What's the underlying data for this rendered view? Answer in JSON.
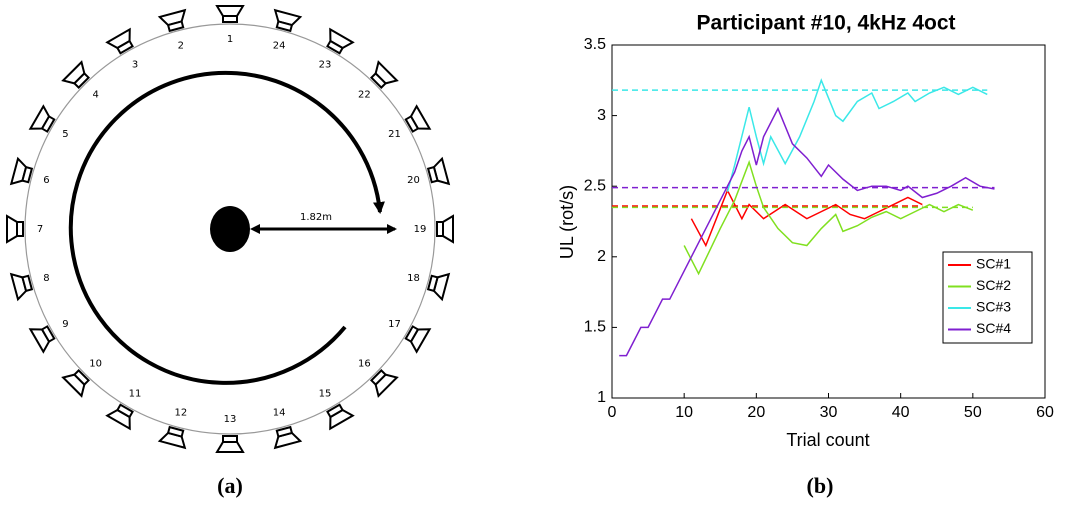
{
  "diagram": {
    "speakers": [
      "1",
      "2",
      "3",
      "4",
      "5",
      "6",
      "7",
      "8",
      "9",
      "10",
      "11",
      "12",
      "13",
      "14",
      "15",
      "16",
      "17",
      "18",
      "19",
      "20",
      "21",
      "22",
      "23",
      "24"
    ],
    "distance": "1.82m",
    "caption": "(a)"
  },
  "chart_data": {
    "type": "line",
    "title": "Participant #10, 4kHz 4oct",
    "caption": "(b)",
    "xlabel": "Trial count",
    "ylabel": "UL (rot/s)",
    "xlim": [
      0,
      60
    ],
    "xticks": [
      0,
      10,
      20,
      30,
      40,
      50,
      60
    ],
    "ylim": [
      1,
      3.5
    ],
    "yticks": [
      1,
      1.5,
      2,
      2.5,
      3,
      3.5
    ],
    "legend": "right",
    "series": [
      {
        "name": "SC#1",
        "color": "#ff0000",
        "threshold": 2.36,
        "x": [
          11,
          13,
          16,
          18,
          19,
          21,
          24,
          27,
          29,
          31,
          33,
          35,
          37,
          39,
          41,
          43
        ],
        "values": [
          2.27,
          2.08,
          2.47,
          2.27,
          2.37,
          2.27,
          2.37,
          2.27,
          2.32,
          2.37,
          2.3,
          2.27,
          2.32,
          2.37,
          2.42,
          2.37
        ]
      },
      {
        "name": "SC#2",
        "color": "#80e020",
        "threshold": 2.35,
        "x": [
          10,
          12,
          15,
          17,
          19,
          20,
          21,
          23,
          25,
          27,
          29,
          31,
          32,
          34,
          36,
          38,
          40,
          42,
          44,
          46,
          48,
          50
        ],
        "values": [
          2.08,
          1.88,
          2.2,
          2.4,
          2.67,
          2.5,
          2.35,
          2.2,
          2.1,
          2.08,
          2.2,
          2.3,
          2.18,
          2.22,
          2.28,
          2.32,
          2.27,
          2.32,
          2.37,
          2.32,
          2.37,
          2.33
        ]
      },
      {
        "name": "SC#3",
        "color": "#3ae8e8",
        "threshold": 3.18,
        "x": [
          16,
          17,
          19,
          20,
          21,
          22,
          24,
          26,
          28,
          29,
          31,
          32,
          34,
          36,
          37,
          39,
          41,
          42,
          44,
          46,
          48,
          50,
          52
        ],
        "values": [
          2.46,
          2.65,
          3.06,
          2.85,
          2.66,
          2.85,
          2.66,
          2.85,
          3.1,
          3.25,
          3.0,
          2.96,
          3.1,
          3.16,
          3.05,
          3.1,
          3.16,
          3.1,
          3.16,
          3.2,
          3.15,
          3.2,
          3.15
        ]
      },
      {
        "name": "SC#4",
        "color": "#7f1fd0",
        "threshold": 2.49,
        "x": [
          1,
          2,
          3,
          4,
          5,
          6,
          7,
          8,
          9,
          10,
          11,
          12,
          13,
          14,
          15,
          16,
          17,
          18,
          19,
          20,
          21,
          23,
          25,
          27,
          29,
          30,
          32,
          34,
          36,
          38,
          40,
          41,
          43,
          45,
          47,
          49,
          51,
          53
        ],
        "values": [
          1.3,
          1.3,
          1.4,
          1.5,
          1.5,
          1.6,
          1.7,
          1.7,
          1.8,
          1.9,
          2.0,
          2.1,
          2.2,
          2.3,
          2.4,
          2.5,
          2.6,
          2.75,
          2.85,
          2.65,
          2.85,
          3.05,
          2.8,
          2.7,
          2.57,
          2.65,
          2.55,
          2.47,
          2.5,
          2.5,
          2.47,
          2.5,
          2.42,
          2.45,
          2.5,
          2.56,
          2.5,
          2.48
        ]
      }
    ]
  }
}
